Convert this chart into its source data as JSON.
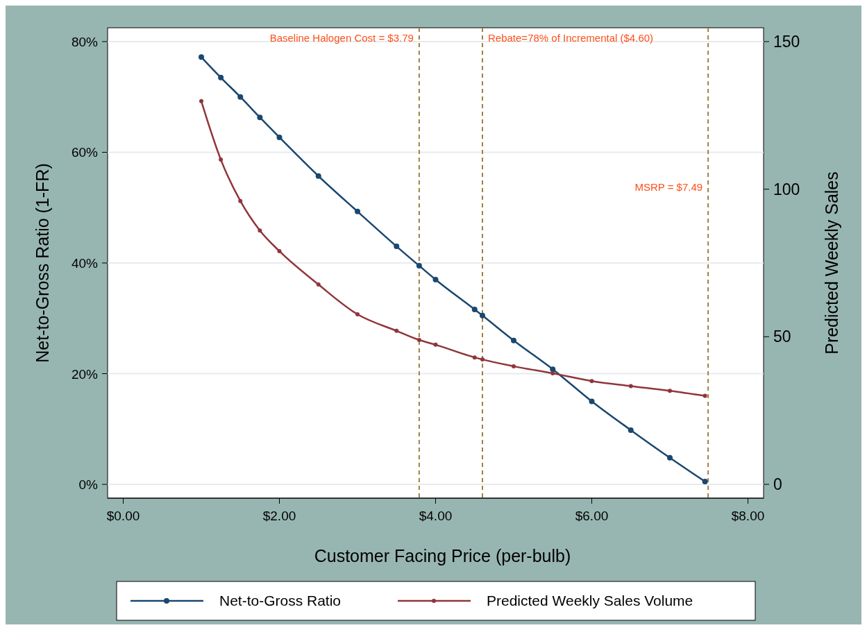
{
  "chart_data": {
    "type": "line",
    "xlabel": "Customer Facing Price (per-bulb)",
    "ylabel": "Net-to-Gross Ratio (1-FR)",
    "y2label": "Predicted Weekly Sales",
    "x": [
      1,
      1.25,
      1.5,
      1.75,
      2,
      2.5,
      3,
      3.5,
      3.79,
      4,
      4.5,
      4.6,
      5,
      5.5,
      6,
      6.5,
      7,
      7.45
    ],
    "series": [
      {
        "name": "Net-to-Gross Ratio",
        "color": "#1a476f",
        "values": [
          77.2,
          73.5,
          70,
          66.3,
          62.7,
          55.7,
          49.3,
          43,
          39.5,
          37,
          31.6,
          30.5,
          26,
          20.8,
          15,
          9.8,
          4.8,
          0.5
        ]
      },
      {
        "name": "Predicted Weekly Sales Volume",
        "color": "#90353b",
        "axis": "y2",
        "values": [
          129.8,
          110,
          96,
          86,
          79,
          67.7,
          57.6,
          52,
          48.9,
          47.3,
          43,
          42.3,
          40,
          37.6,
          35,
          33.3,
          31.7,
          30
        ]
      }
    ],
    "xlim": [
      -0.2,
      8.2
    ],
    "xticks": [
      {
        "value": 0,
        "label": "$0.00"
      },
      {
        "value": 2,
        "label": "$2.00"
      },
      {
        "value": 4,
        "label": "$4.00"
      },
      {
        "value": 6,
        "label": "$6.00"
      },
      {
        "value": 8,
        "label": "$8.00"
      }
    ],
    "ylim": [
      -2.5,
      82.5
    ],
    "yticks": [
      {
        "value": 0,
        "label": "0%"
      },
      {
        "value": 20,
        "label": "20%"
      },
      {
        "value": 40,
        "label": "40%"
      },
      {
        "value": 60,
        "label": "60%"
      },
      {
        "value": 80,
        "label": "80%"
      }
    ],
    "y2lim": [
      -4.6875,
      154.6875
    ],
    "y2ticks": [
      0,
      50,
      100,
      150
    ],
    "ref_lines": [
      {
        "axis": "x",
        "value": 3.79,
        "label": "Baseline Halogen Cost = $3.79",
        "color": "#a08040",
        "line_style": "dashed"
      },
      {
        "axis": "x",
        "value": 4.6,
        "label": "Rebate=78% of Incremental ($4.60)",
        "color": "#a08040",
        "line_style": "dashed"
      },
      {
        "axis": "x",
        "value": 7.49,
        "label": "MSRP = $7.49",
        "color": "#a08040",
        "line_style": "dashed"
      }
    ],
    "grid": "y",
    "legend": "bottom",
    "marker": "circle",
    "line_style": "solid"
  }
}
